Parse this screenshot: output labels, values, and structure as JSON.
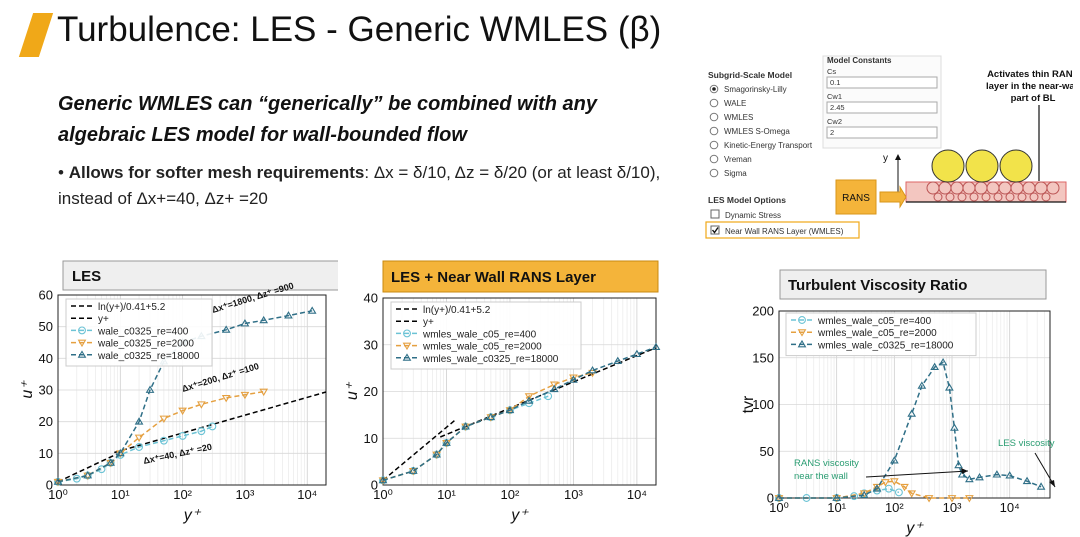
{
  "slide": {
    "title": "Turbulence: LES - Generic WMLES (β)",
    "subtitle_line1": "Generic WMLES can “generically” be combined with any",
    "subtitle_line2": "algebraic LES model for wall-bounded flow",
    "bullet_bold": "Allows for softer mesh requirements",
    "bullet_rest": ": Δx = δ/10, Δz = δ/20 (or at least δ/10), instead of Δx+=40, Δz+ =20",
    "accent_color": "#f0a818"
  },
  "fluent_panel": {
    "sgs_title": "Subgrid-Scale Model",
    "sgs_options": [
      "Smagorinsky-Lilly",
      "WALE",
      "WMLES",
      "WMLES S-Omega",
      "Kinetic-Energy Transport",
      "Vreman",
      "Sigma"
    ],
    "sgs_selected": "Smagorinsky-Lilly",
    "constants_title": "Model Constants",
    "constants": [
      {
        "label": "Cs",
        "value": "0.1"
      },
      {
        "label": "Cw1",
        "value": "2.45"
      },
      {
        "label": "Cw2",
        "value": "2"
      }
    ],
    "les_options_title": "LES Model Options",
    "les_options": [
      {
        "label": "Dynamic Stress",
        "checked": false
      },
      {
        "label": "Near Wall RANS Layer (WMLES)",
        "checked": true
      }
    ]
  },
  "schematic": {
    "note_line1": "Activates thin RANS",
    "note_line2": "layer in the near-wall",
    "note_line3": "part of BL",
    "rans_label": "RANS",
    "axis_label": "y"
  },
  "chart_data": [
    {
      "type": "line",
      "title": "LES",
      "xlabel": "y+",
      "ylabel": "u+",
      "xscale": "log",
      "xlim": [
        1,
        20000
      ],
      "ylim": [
        0,
        60
      ],
      "yticks": [
        0,
        10,
        20,
        30,
        40,
        50,
        60
      ],
      "xtick_labels": [
        "10⁰",
        "10¹",
        "10²",
        "10³",
        "10⁴"
      ],
      "grid": true,
      "legend": "top-left",
      "series": [
        {
          "name": "ln(y+)/0.41+5.2",
          "style": "dash",
          "color": "#000000",
          "x": [
            8,
            20000
          ],
          "y": [
            10.27,
            29.36
          ]
        },
        {
          "name": "y+",
          "style": "dash",
          "color": "#000000",
          "x": [
            1,
            10.5
          ],
          "y": [
            1,
            10.5
          ]
        },
        {
          "name": "wale_c0325_re=400",
          "style": "dash",
          "marker": "circle",
          "color": "#6cc3d5",
          "x": [
            1,
            2,
            3,
            5,
            7,
            10,
            20,
            50,
            100,
            200,
            300
          ],
          "y": [
            1,
            2,
            3,
            5,
            7,
            9.5,
            12,
            14,
            15.5,
            17,
            18.5
          ]
        },
        {
          "name": "wale_c0325_re=2000",
          "style": "dash",
          "marker": "triangle-down",
          "color": "#e5a040",
          "x": [
            1,
            3,
            7,
            10,
            20,
            50,
            100,
            200,
            500,
            1000,
            2000
          ],
          "y": [
            1,
            3,
            7,
            10,
            15,
            21,
            23.5,
            25.5,
            27.5,
            28.5,
            29.5
          ]
        },
        {
          "name": "wale_c0325_re=18000",
          "style": "dash",
          "marker": "triangle-up",
          "color": "#2f6f87",
          "x": [
            1,
            3,
            7,
            10,
            20,
            30,
            50,
            100,
            200,
            500,
            1000,
            2000,
            5000,
            12000
          ],
          "y": [
            1,
            3,
            7,
            10,
            20,
            30,
            39,
            45,
            47,
            49,
            51,
            52,
            53.5,
            55
          ]
        }
      ],
      "annotations": [
        "Δx⁺=1800, Δz⁺ =900",
        "Δx⁺=200, Δz⁺ =100",
        "Δx⁺=40, Δz⁺ =20"
      ]
    },
    {
      "type": "line",
      "title": "LES + Near Wall RANS Layer",
      "xlabel": "y+",
      "ylabel": "u+",
      "xscale": "log",
      "xlim": [
        1,
        20000
      ],
      "ylim": [
        0,
        40
      ],
      "yticks": [
        0,
        10,
        20,
        30,
        40
      ],
      "xtick_labels": [
        "10⁰",
        "10¹",
        "10²",
        "10³",
        "10⁴"
      ],
      "grid": true,
      "legend": "top-left",
      "series": [
        {
          "name": "ln(y+)/0.41+5.2",
          "style": "dash",
          "color": "#000000",
          "x": [
            8,
            20000
          ],
          "y": [
            10.27,
            29.36
          ]
        },
        {
          "name": "y+",
          "style": "dash",
          "color": "#000000",
          "x": [
            1,
            14
          ],
          "y": [
            1,
            14
          ]
        },
        {
          "name": "wmles_wale_c05_re=400",
          "style": "dash",
          "marker": "circle",
          "color": "#6cc3d5",
          "x": [
            1,
            3,
            7,
            10,
            20,
            50,
            100,
            200,
            400
          ],
          "y": [
            1,
            3,
            6.5,
            9,
            12.5,
            14.5,
            16,
            17.5,
            19
          ]
        },
        {
          "name": "wmles_wale_c05_re=2000",
          "style": "dash",
          "marker": "triangle-down",
          "color": "#e5a040",
          "x": [
            1,
            3,
            7,
            10,
            20,
            50,
            100,
            200,
            500,
            1000,
            2000
          ],
          "y": [
            1,
            3,
            6.5,
            9,
            12.5,
            14.5,
            16,
            19,
            21.5,
            23,
            24
          ]
        },
        {
          "name": "wmles_wale_c0325_re=18000",
          "style": "dash",
          "marker": "triangle-up",
          "color": "#2f6f87",
          "x": [
            1,
            3,
            7,
            10,
            20,
            50,
            100,
            200,
            500,
            1000,
            2000,
            5000,
            10000,
            20000
          ],
          "y": [
            1,
            3,
            6.5,
            9,
            12.5,
            14.5,
            16,
            18,
            20.5,
            22.5,
            24.5,
            26.5,
            28,
            29.5
          ]
        }
      ]
    },
    {
      "type": "line",
      "title": "Turbulent Viscosity Ratio",
      "xlabel": "y+",
      "ylabel": "tvr",
      "xscale": "log",
      "xlim": [
        1,
        50000
      ],
      "ylim": [
        0,
        200
      ],
      "yticks": [
        0,
        50,
        100,
        150,
        200
      ],
      "xtick_labels": [
        "10⁰",
        "10¹",
        "10²",
        "10³",
        "10⁴"
      ],
      "grid": true,
      "legend": "top-left",
      "series": [
        {
          "name": "wmles_wale_c05_re=400",
          "style": "dash",
          "marker": "circle",
          "color": "#6cc3d5",
          "x": [
            1,
            3,
            10,
            20,
            30,
            50,
            80,
            120
          ],
          "y": [
            0,
            0,
            0,
            2,
            5,
            8,
            10,
            6
          ]
        },
        {
          "name": "wmles_wale_c05_re=2000",
          "style": "dash",
          "marker": "triangle-down",
          "color": "#e5a040",
          "x": [
            1,
            10,
            30,
            50,
            70,
            100,
            150,
            200,
            400,
            1000,
            2000
          ],
          "y": [
            0,
            0,
            5,
            12,
            17,
            18,
            12,
            5,
            0,
            0,
            0
          ]
        },
        {
          "name": "wmles_wale_c0325_re=18000",
          "style": "dash",
          "marker": "triangle-up",
          "color": "#2f6f87",
          "x": [
            1,
            10,
            30,
            50,
            100,
            200,
            300,
            500,
            700,
            900,
            1100,
            1300,
            1500,
            2000,
            3000,
            6000,
            10000,
            20000,
            35000
          ],
          "y": [
            0,
            0,
            3,
            10,
            40,
            90,
            120,
            140,
            145,
            118,
            75,
            35,
            25,
            20,
            22,
            25,
            24,
            18,
            12
          ]
        }
      ],
      "annotations": [
        "RANS viscosity near the wall",
        "LES viscosity"
      ]
    }
  ]
}
